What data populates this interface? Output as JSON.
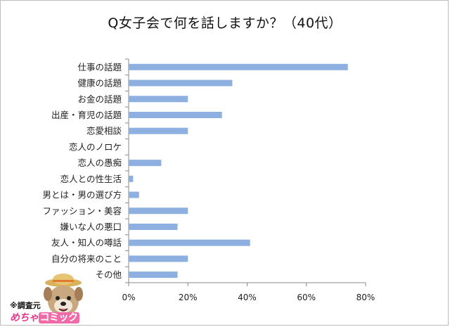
{
  "chart_data": {
    "type": "bar",
    "orientation": "horizontal",
    "title": "Q女子会で何を話しますか？（40代）",
    "categories": [
      "仕事の話題",
      "健康の話題",
      "お金の話題",
      "出産・育児の話題",
      "恋愛相談",
      "恋人のノロケ",
      "恋人の愚痴",
      "恋人との性生活",
      "男とは・男の選び方",
      "ファッション・美容",
      "嫌いな人の悪口",
      "友人・知人の噂話",
      "自分の将来のこと",
      "その他"
    ],
    "values": [
      74,
      35,
      20,
      31.5,
      20,
      0,
      11,
      1.5,
      3.5,
      20,
      16.5,
      41,
      20,
      16.5
    ],
    "xlim": [
      0,
      80
    ],
    "ticks": [
      0,
      20,
      40,
      60,
      80
    ],
    "tick_labels": [
      "0%",
      "20%",
      "40%",
      "60%",
      "80%"
    ],
    "grid": false,
    "bar_color": "#8eb0e0"
  },
  "branding": {
    "source_label": "※調査元",
    "logo_text_part1": "めちゃ",
    "logo_text_part2": "コミック"
  }
}
